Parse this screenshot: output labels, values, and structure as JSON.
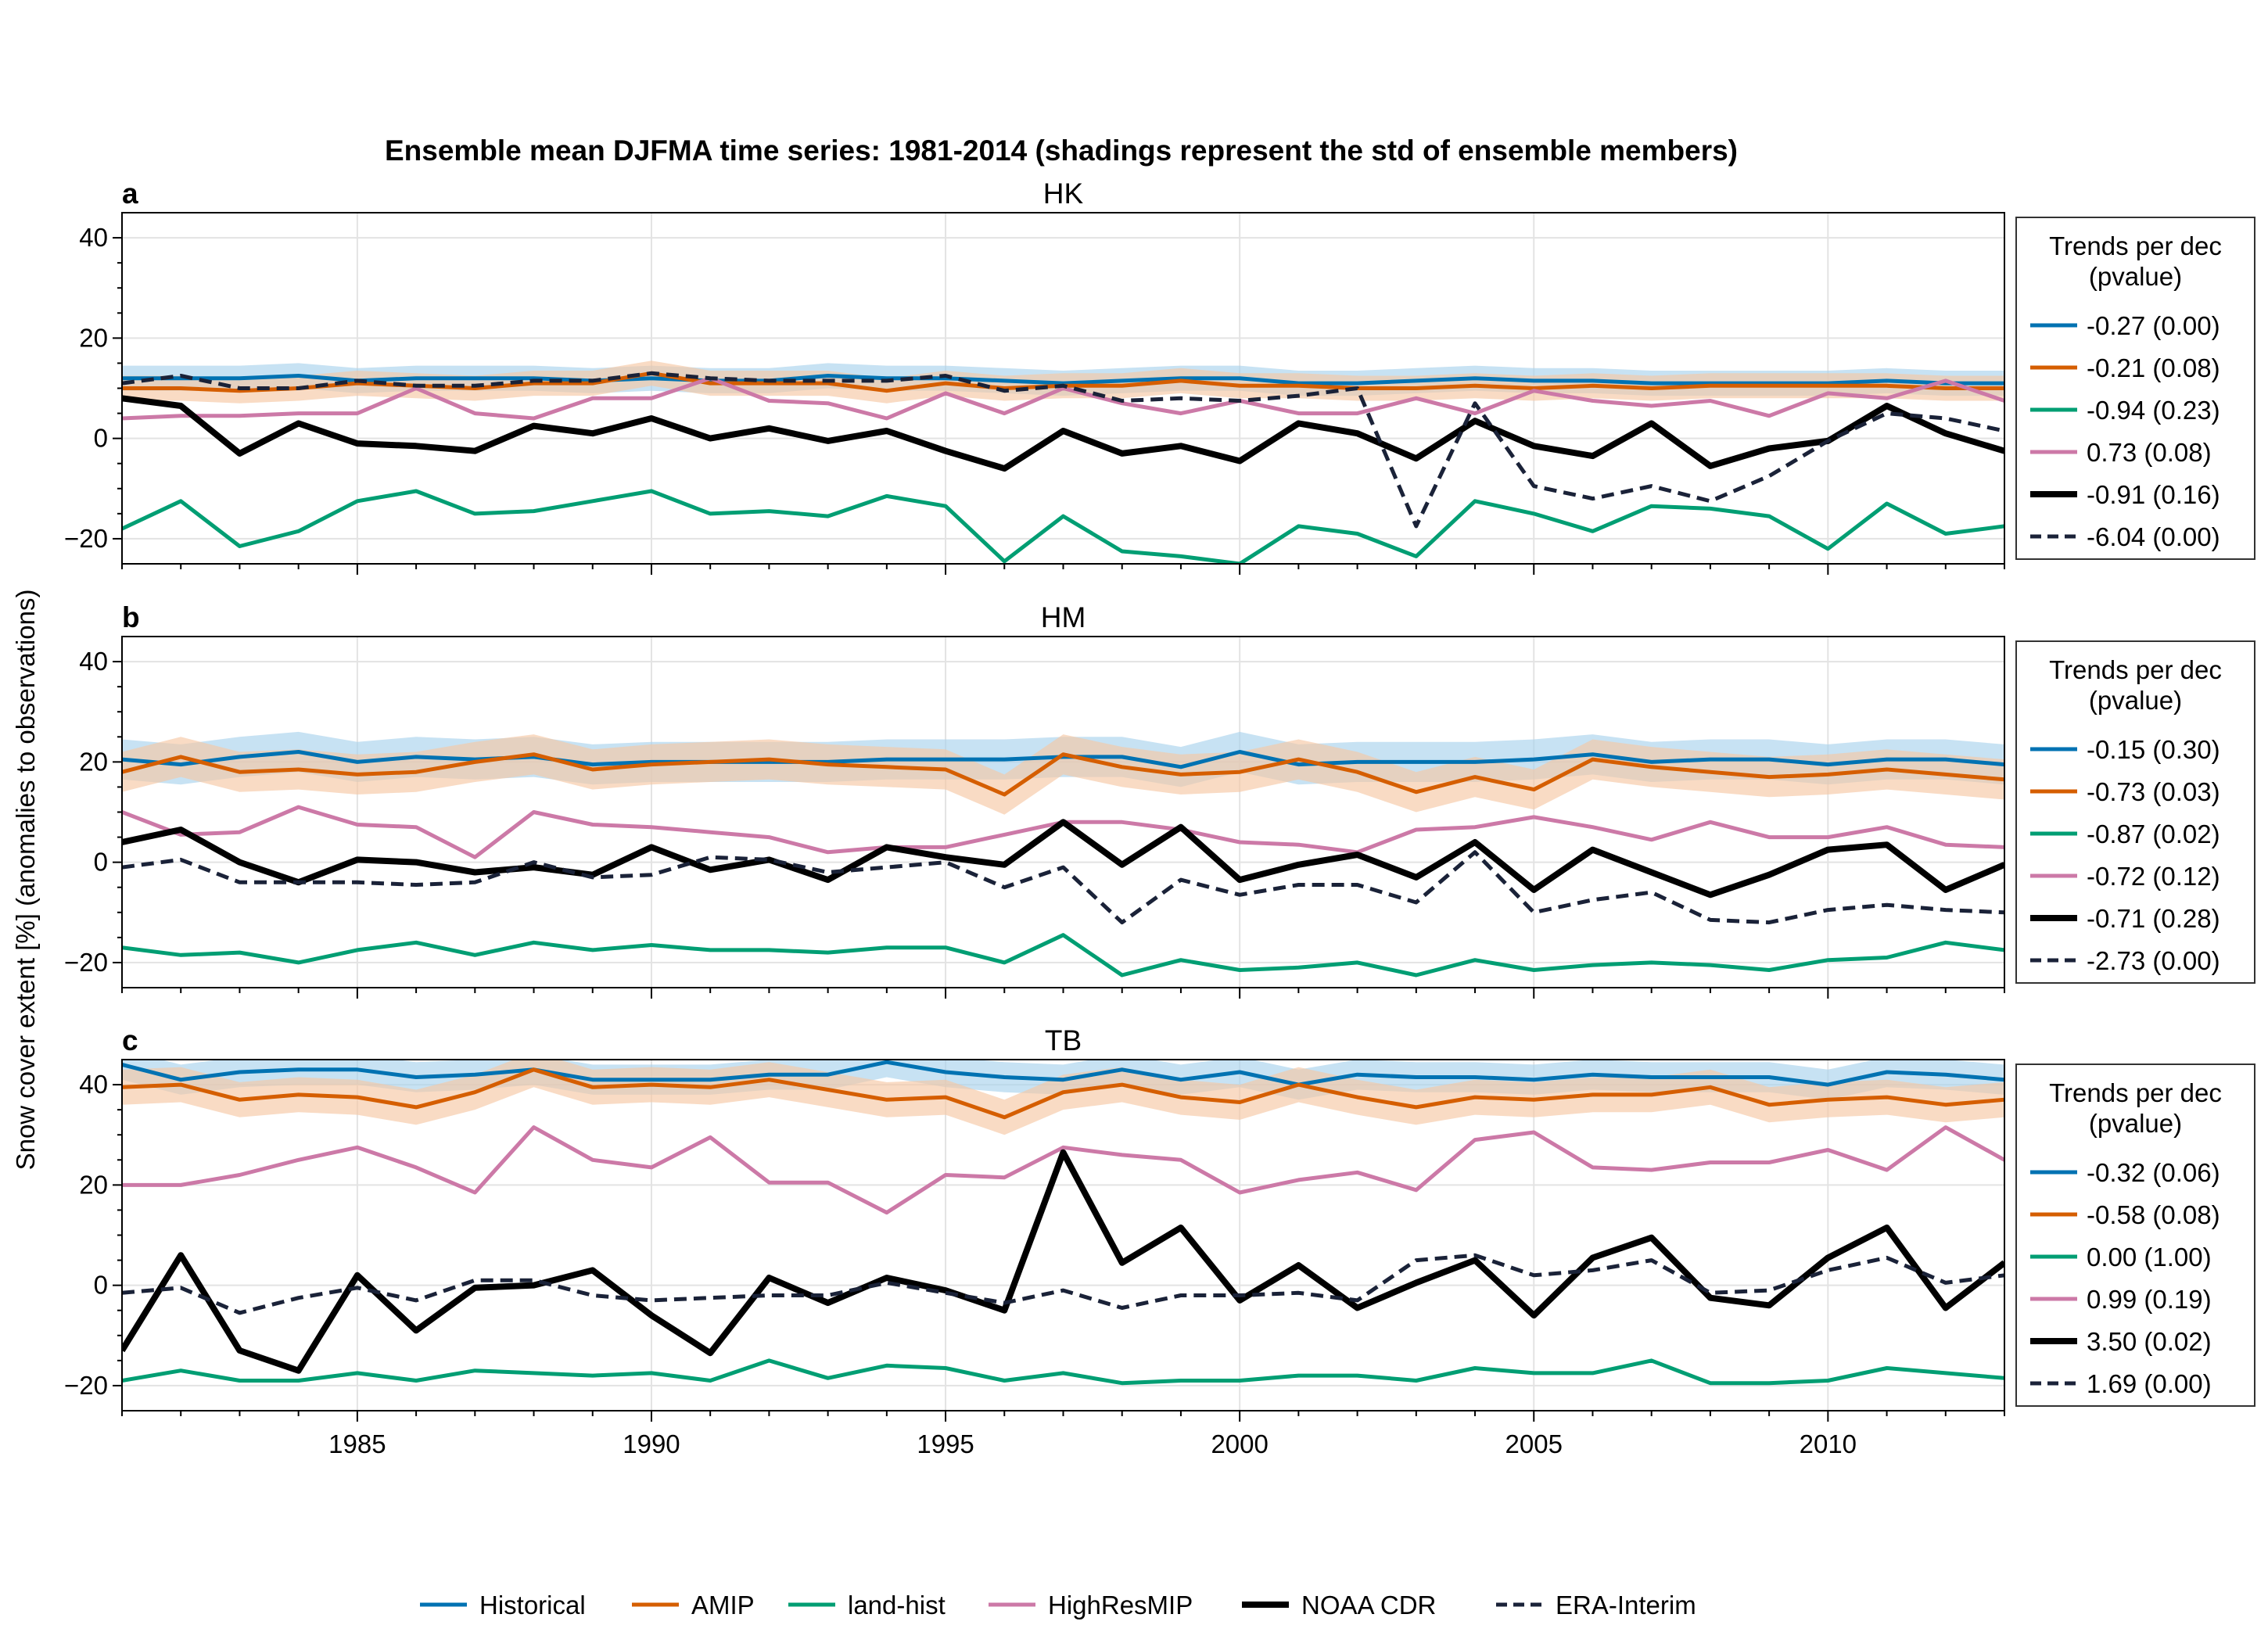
{
  "chart_data": {
    "type": "line",
    "title": "Ensemble mean DJFMA time series: 1981-2014 (shadings represent the std of ensemble members)",
    "ylabel": "Snow cover extent [%] (anomalies to observations)",
    "xlim": [
      1981,
      2013
    ],
    "x_ticks": [
      1985,
      1990,
      1995,
      2000,
      2005,
      2010
    ],
    "ylim": [
      -25,
      45
    ],
    "y_ticks": [
      -20,
      0,
      20,
      40
    ],
    "grid": true,
    "x": [
      1981,
      1982,
      1983,
      1984,
      1985,
      1986,
      1987,
      1988,
      1989,
      1990,
      1991,
      1992,
      1993,
      1994,
      1995,
      1996,
      1997,
      1998,
      1999,
      2000,
      2001,
      2002,
      2003,
      2004,
      2005,
      2006,
      2007,
      2008,
      2009,
      2010,
      2011,
      2012,
      2013
    ],
    "series_meta": [
      {
        "name": "Historical",
        "color": "#0072b2",
        "style": "solid",
        "width": 5,
        "shaded": true,
        "shade_color": "#a9d3ec"
      },
      {
        "name": "AMIP",
        "color": "#d55e00",
        "style": "solid",
        "width": 5,
        "shaded": true,
        "shade_color": "#f6c7a5"
      },
      {
        "name": "land-hist",
        "color": "#009e73",
        "style": "solid",
        "width": 5,
        "shaded": false
      },
      {
        "name": "HighResMIP",
        "color": "#cc79a7",
        "style": "solid",
        "width": 5,
        "shaded": false
      },
      {
        "name": "NOAA CDR",
        "color": "#000000",
        "style": "solid",
        "width": 8,
        "shaded": false
      },
      {
        "name": "ERA-Interim",
        "color": "#1a2238",
        "style": "dashed",
        "width": 5,
        "shaded": false
      }
    ],
    "legend_placement": "bottom",
    "panels": [
      {
        "letter": "a",
        "title": "HK",
        "legend_title_line1": "Trends per dec",
        "legend_title_line2": "(pvalue)",
        "trends": [
          "-0.27 (0.00)",
          "-0.21 (0.08)",
          "-0.94 (0.23)",
          "0.73 (0.08)",
          "-0.91 (0.16)",
          "-6.04 (0.00)"
        ],
        "series": [
          {
            "name": "Historical",
            "std": 2.5,
            "values": [
              12,
              12,
              12,
              12.5,
              11.5,
              12,
              12,
              12,
              11.5,
              12,
              11.5,
              11.5,
              12.5,
              12,
              12,
              11.5,
              11,
              11.5,
              12,
              12,
              11,
              11,
              11.5,
              12,
              11.5,
              11.5,
              11,
              11,
              11,
              11,
              11.5,
              11,
              11
            ]
          },
          {
            "name": "AMIP",
            "std": 2.5,
            "values": [
              10,
              10,
              9.5,
              10,
              11,
              10.5,
              10,
              11,
              11,
              13,
              11,
              11,
              11,
              9.5,
              11,
              10,
              10.5,
              10.5,
              11.5,
              10.5,
              10.5,
              10,
              10,
              10.5,
              10,
              10.5,
              10,
              10.5,
              10.5,
              10.5,
              10.5,
              10,
              10
            ]
          },
          {
            "name": "land-hist",
            "values": [
              -18,
              -12.5,
              -21.5,
              -18.5,
              -12.5,
              -10.5,
              -15,
              -14.5,
              -12.5,
              -10.5,
              -15,
              -14.5,
              -15.5,
              -11.5,
              -13.5,
              -24.5,
              -15.5,
              -22.5,
              -23.5,
              -25,
              -17.5,
              -19,
              -23.5,
              -12.5,
              -15,
              -18.5,
              -13.5,
              -14,
              -15.5,
              -22,
              -13,
              -19,
              -17.5
            ]
          },
          {
            "name": "HighResMIP",
            "values": [
              4,
              4.5,
              4.5,
              5,
              5,
              10,
              5,
              4,
              8,
              8,
              12,
              7.5,
              7,
              4,
              9,
              5,
              10,
              7,
              5,
              7.5,
              5,
              5,
              8,
              5,
              9.5,
              7.5,
              6.5,
              7.5,
              4.5,
              9,
              8,
              11.5,
              7.5
            ]
          },
          {
            "name": "NOAA CDR",
            "values": [
              8,
              6.5,
              -3,
              3,
              -1,
              -1.5,
              -2.5,
              2.5,
              1,
              4,
              0,
              2,
              -0.5,
              1.5,
              -2.5,
              -6,
              1.5,
              -3,
              -1.5,
              -4.5,
              3,
              1,
              -4,
              3.5,
              -1.5,
              -3.5,
              3,
              -5.5,
              -2,
              -0.5,
              6.5,
              1,
              -2.5
            ]
          },
          {
            "name": "ERA-Interim",
            "values": [
              11,
              12.5,
              10,
              10,
              11.5,
              10.5,
              10.5,
              11.5,
              11.5,
              13,
              12,
              11.5,
              11.5,
              11.5,
              12.5,
              9.5,
              10.5,
              7.5,
              8,
              7.5,
              8.5,
              10,
              -17.5,
              7,
              -9.5,
              -12,
              -9.5,
              -12.5,
              -7.5,
              -0.5,
              5,
              4,
              1.5
            ]
          }
        ]
      },
      {
        "letter": "b",
        "title": "HM",
        "legend_title_line1": "Trends per dec",
        "legend_title_line2": "(pvalue)",
        "trends": [
          "-0.15 (0.30)",
          "-0.73 (0.03)",
          "-0.87 (0.02)",
          "-0.72 (0.12)",
          "-0.71 (0.28)",
          "-2.73 (0.00)"
        ],
        "series": [
          {
            "name": "Historical",
            "std": 4,
            "values": [
              20.5,
              19.5,
              21,
              22,
              20,
              21,
              20.5,
              21,
              19.5,
              20,
              20,
              20,
              20,
              20.5,
              20.5,
              20.5,
              21,
              21,
              19,
              22,
              19.5,
              20,
              20,
              20,
              20.5,
              21.5,
              20,
              20.5,
              20.5,
              19.5,
              20.5,
              20.5,
              19.5
            ]
          },
          {
            "name": "AMIP",
            "std": 4,
            "values": [
              18,
              21,
              18,
              18.5,
              17.5,
              18,
              20,
              21.5,
              18.5,
              19.5,
              20,
              20.5,
              19.5,
              19,
              18.5,
              13.5,
              21.5,
              19,
              17.5,
              18,
              20.5,
              18,
              14,
              17,
              14.5,
              20.5,
              19,
              18,
              17,
              17.5,
              18.5,
              17.5,
              16.5
            ]
          },
          {
            "name": "land-hist",
            "values": [
              -17,
              -18.5,
              -18,
              -20,
              -17.5,
              -16,
              -18.5,
              -16,
              -17.5,
              -16.5,
              -17.5,
              -17.5,
              -18,
              -17,
              -17,
              -20,
              -14.5,
              -22.5,
              -19.5,
              -21.5,
              -21,
              -20,
              -22.5,
              -19.5,
              -21.5,
              -20.5,
              -20,
              -20.5,
              -21.5,
              -19.5,
              -19,
              -16,
              -17.5
            ]
          },
          {
            "name": "HighResMIP",
            "values": [
              10,
              5.5,
              6,
              11,
              7.5,
              7,
              1,
              10,
              7.5,
              7,
              6,
              5,
              2,
              3,
              3,
              5.5,
              8,
              8,
              6.5,
              4,
              3.5,
              2,
              6.5,
              7,
              9,
              7,
              4.5,
              8,
              5,
              5,
              7,
              3.5,
              3
            ]
          },
          {
            "name": "NOAA CDR",
            "values": [
              4,
              6.5,
              0,
              -4,
              0.5,
              0,
              -2,
              -1,
              -2.5,
              3,
              -1.5,
              0.5,
              -3.5,
              3,
              1,
              -0.5,
              8,
              -0.5,
              7,
              -3.5,
              -0.5,
              1.5,
              -3,
              4,
              -5.5,
              2.5,
              -2,
              -6.5,
              -2.5,
              2.5,
              3.5,
              -5.5,
              -0.5
            ]
          },
          {
            "name": "ERA-Interim",
            "values": [
              -1,
              0.5,
              -4,
              -4,
              -4,
              -4.5,
              -4,
              0,
              -3,
              -2.5,
              1,
              0.5,
              -2,
              -1,
              0,
              -5,
              -1,
              -12,
              -3.5,
              -6.5,
              -4.5,
              -4.5,
              -8,
              2,
              -10,
              -7.5,
              -6,
              -11.5,
              -12,
              -9.5,
              -8.5,
              -9.5,
              -10
            ]
          }
        ]
      },
      {
        "letter": "c",
        "title": "TB",
        "legend_title_line1": "Trends per dec",
        "legend_title_line2": "(pvalue)",
        "trends": [
          "-0.32 (0.06)",
          "-0.58 (0.08)",
          "0.00 (1.00)",
          "0.99 (0.19)",
          "3.50 (0.02)",
          "1.69 (0.00)"
        ],
        "series": [
          {
            "name": "Historical",
            "std": 3,
            "values": [
              44,
              41,
              42.5,
              43,
              43,
              41.5,
              42,
              43,
              41,
              41,
              41,
              42,
              42,
              44.5,
              42.5,
              41.5,
              41,
              43,
              41,
              42.5,
              40,
              42,
              41.5,
              41.5,
              41,
              42,
              41.5,
              41.5,
              41.5,
              40,
              42.5,
              42,
              41
            ]
          },
          {
            "name": "AMIP",
            "std": 3.5,
            "values": [
              39.5,
              40,
              37,
              38,
              37.5,
              35.5,
              38.5,
              43,
              39.5,
              40,
              39.5,
              41,
              39,
              37,
              37.5,
              33.5,
              38.5,
              40,
              37.5,
              36.5,
              40,
              37.5,
              35.5,
              37.5,
              37,
              38,
              38,
              39.5,
              36,
              37,
              37.5,
              36,
              37
            ]
          },
          {
            "name": "land-hist",
            "values": [
              -19,
              -17,
              -19,
              -19,
              -17.5,
              -19,
              -17,
              -17.5,
              -18,
              -17.5,
              -19,
              -15,
              -18.5,
              -16,
              -16.5,
              -19,
              -17.5,
              -19.5,
              -19,
              -19,
              -18,
              -18,
              -19,
              -16.5,
              -17.5,
              -17.5,
              -15,
              -19.5,
              -19.5,
              -19,
              -16.5,
              -17.5,
              -18.5
            ]
          },
          {
            "name": "HighResMIP",
            "values": [
              20,
              20,
              22,
              25,
              27.5,
              23.5,
              18.5,
              31.5,
              25,
              23.5,
              29.5,
              20.5,
              20.5,
              14.5,
              22,
              21.5,
              27.5,
              26,
              25,
              18.5,
              21,
              22.5,
              19,
              29,
              30.5,
              23.5,
              23,
              24.5,
              24.5,
              27,
              23,
              31.5,
              25
            ]
          },
          {
            "name": "NOAA CDR",
            "values": [
              -13,
              6,
              -13,
              -17,
              2,
              -9,
              -0.5,
              0,
              3,
              -6,
              -13.5,
              1.5,
              -3.5,
              1.5,
              -1,
              -5,
              26.5,
              4.5,
              11.5,
              -3,
              4,
              -4.5,
              0.5,
              5,
              -6,
              5.5,
              9.5,
              -2.5,
              -4,
              5.5,
              11.5,
              -4.5,
              4.5
            ]
          },
          {
            "name": "ERA-Interim",
            "values": [
              -1.5,
              -0.5,
              -5.5,
              -2.5,
              -0.5,
              -3,
              1,
              1,
              -2,
              -3,
              -2.5,
              -2,
              -2,
              0.5,
              -1.5,
              -3.5,
              -1,
              -4.5,
              -2,
              -2,
              -1.5,
              -3,
              5,
              6,
              2,
              3,
              5,
              -1.5,
              -1,
              3,
              5.5,
              0.5,
              2
            ]
          }
        ]
      }
    ]
  }
}
